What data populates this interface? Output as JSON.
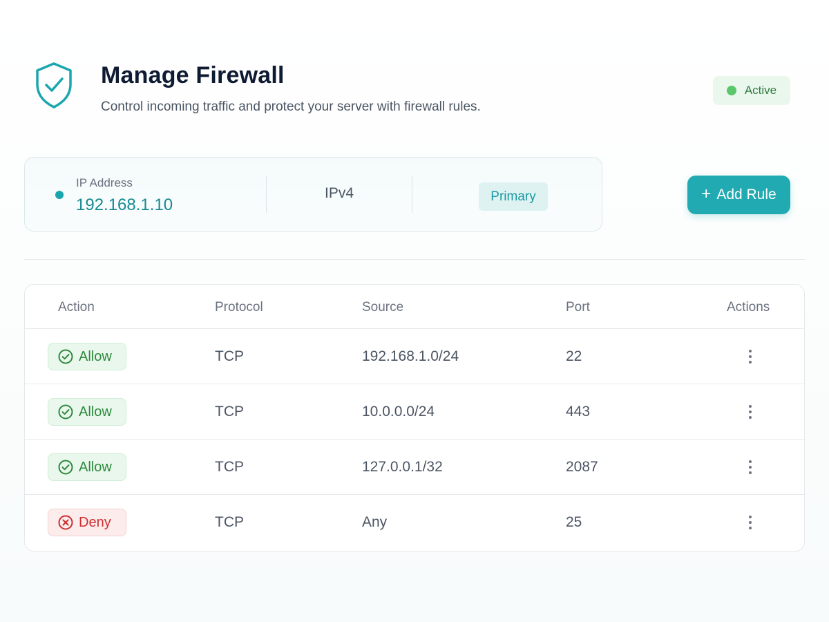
{
  "header": {
    "title": "Manage Firewall",
    "subtitle": "Control incoming traffic and protect your server with firewall rules.",
    "status": "Active",
    "icon": "shield-check-icon"
  },
  "ip_card": {
    "label": "IP Address",
    "value": "192.168.1.10",
    "version": "IPv4",
    "badge": "Primary"
  },
  "toolbar": {
    "add_rule_label": "Add Rule",
    "add_rule_icon": "+"
  },
  "table": {
    "headers": {
      "action": "Action",
      "protocol": "Protocol",
      "source": "Source",
      "port": "Port",
      "actions": "Actions"
    },
    "rows": [
      {
        "action": "Allow",
        "protocol": "TCP",
        "source": "192.168.1.0/24",
        "port": "22"
      },
      {
        "action": "Allow",
        "protocol": "TCP",
        "source": "10.0.0.0/24",
        "port": "443"
      },
      {
        "action": "Allow",
        "protocol": "TCP",
        "source": "127.0.0.1/32",
        "port": "2087"
      },
      {
        "action": "Deny",
        "protocol": "TCP",
        "source": "Any",
        "port": "25"
      }
    ]
  },
  "colors": {
    "accent": "#22aab2",
    "allow": "#2d8a3e",
    "deny": "#cc2f2f",
    "active": "#5cc66b"
  }
}
